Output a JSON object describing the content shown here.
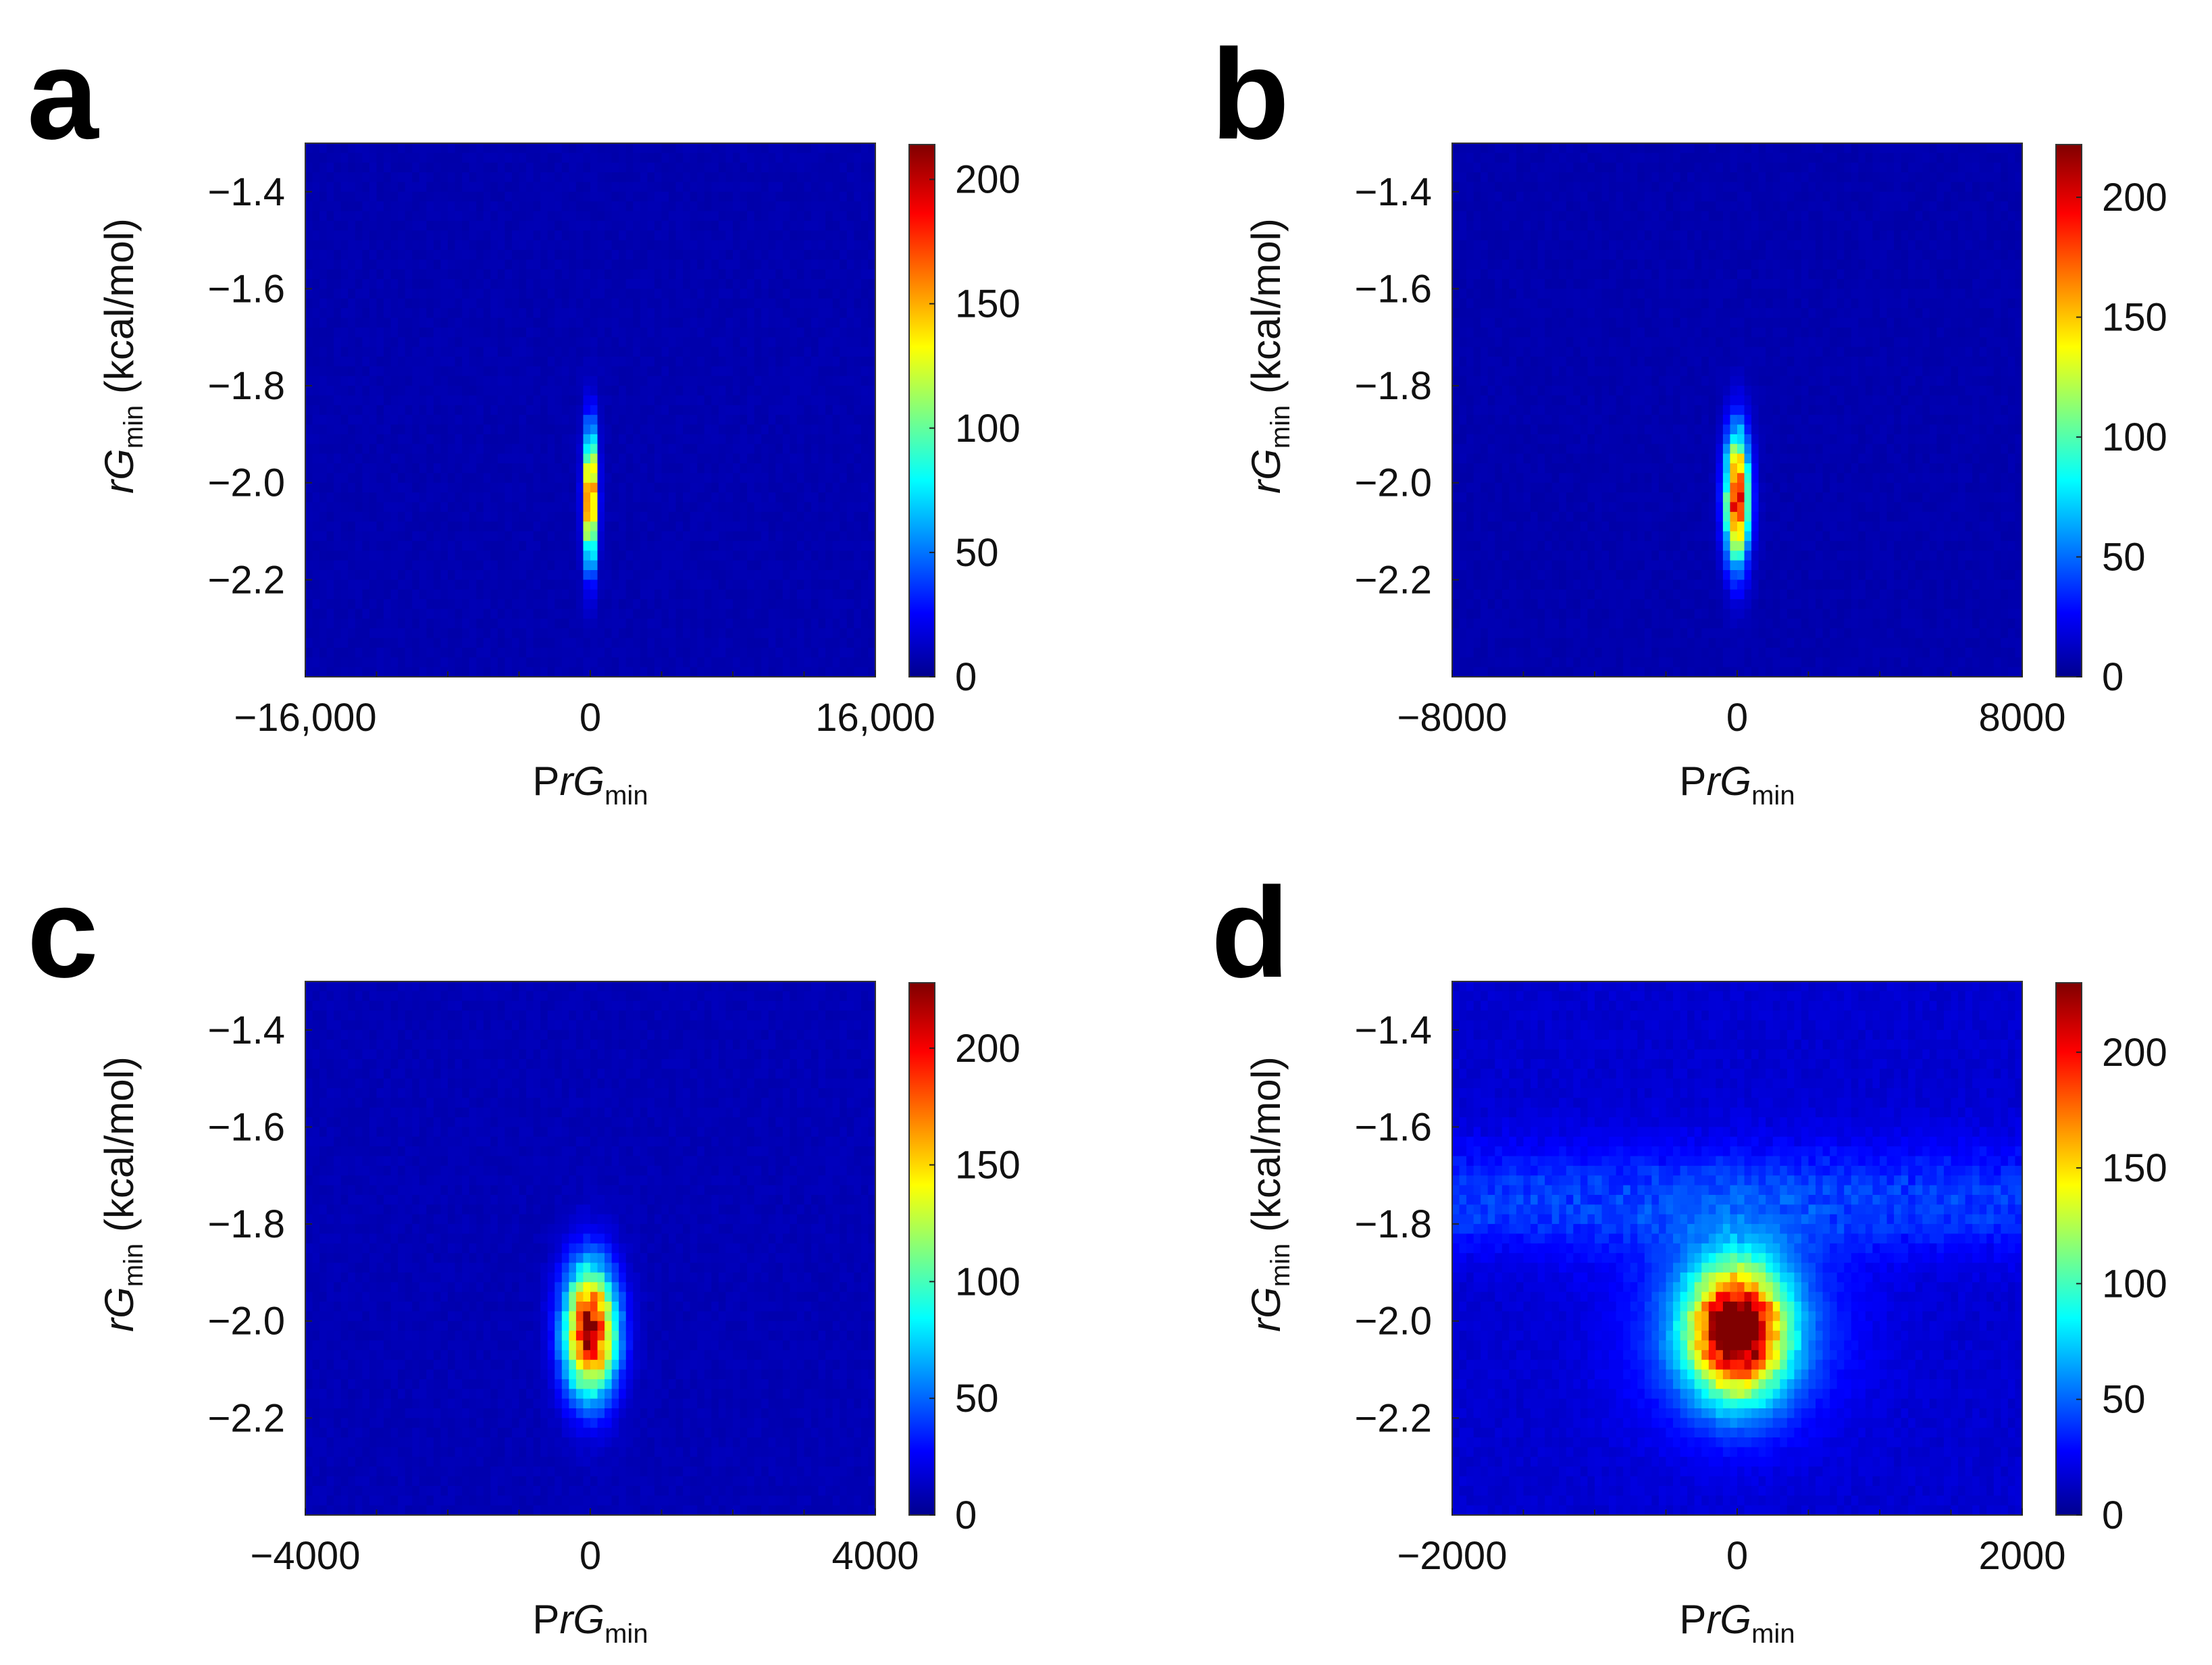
{
  "figure": {
    "panel_count": 4
  },
  "colormap": {
    "name": "jet",
    "stops": [
      "#00008f",
      "#0000ff",
      "#00ffff",
      "#ffff00",
      "#ff0000",
      "#800000"
    ]
  },
  "chart_data": [
    {
      "panel_label": "a",
      "type": "heatmap",
      "title": "",
      "xlabel": {
        "main": "P",
        "italic": "rG",
        "sub": "min"
      },
      "ylabel": {
        "italic": "rG",
        "sub": "min",
        "suffix": " (kcal/mol)"
      },
      "xlim": [
        -16000,
        16000
      ],
      "ylim": [
        -2.4,
        -1.3
      ],
      "x_ticks": [
        -16000,
        0,
        16000
      ],
      "x_ticklabels": [
        "−16,000",
        "0",
        "16,000"
      ],
      "y_ticks": [
        -1.4,
        -1.6,
        -1.8,
        -2.0,
        -2.2
      ],
      "y_ticklabels": [
        "−1.4",
        "−1.6",
        "−1.8",
        "−2.0",
        "−2.2"
      ],
      "grid_bins": [
        80,
        55
      ],
      "colorbar": {
        "vmin": 0,
        "vmax": 214,
        "ticks": [
          0,
          50,
          100,
          150,
          200
        ],
        "ticklabels": [
          "0",
          "50",
          "100",
          "150",
          "200"
        ]
      },
      "background_count": 10,
      "hotspot": {
        "x_center": 0,
        "y_center": -2.03,
        "x_sigma": 250,
        "y_sigma": 0.09,
        "peak": 210,
        "tail": 0
      }
    },
    {
      "panel_label": "b",
      "type": "heatmap",
      "title": "",
      "xlabel": {
        "main": "P",
        "italic": "rG",
        "sub": "min"
      },
      "ylabel": {
        "italic": "rG",
        "sub": "min",
        "suffix": " (kcal/mol)"
      },
      "xlim": [
        -8000,
        8000
      ],
      "ylim": [
        -2.4,
        -1.3
      ],
      "x_ticks": [
        -8000,
        0,
        8000
      ],
      "x_ticklabels": [
        "−8000",
        "0",
        "8000"
      ],
      "y_ticks": [
        -1.4,
        -1.6,
        -1.8,
        -2.0,
        -2.2
      ],
      "y_ticklabels": [
        "−1.4",
        "−1.6",
        "−1.8",
        "−2.0",
        "−2.2"
      ],
      "grid_bins": [
        80,
        55
      ],
      "colorbar": {
        "vmin": 0,
        "vmax": 222,
        "ticks": [
          0,
          50,
          100,
          150,
          200
        ],
        "ticklabels": [
          "0",
          "50",
          "100",
          "150",
          "200"
        ]
      },
      "background_count": 10,
      "hotspot": {
        "x_center": 0,
        "y_center": -2.03,
        "x_sigma": 230,
        "y_sigma": 0.09,
        "peak": 215,
        "tail": 0
      }
    },
    {
      "panel_label": "c",
      "type": "heatmap",
      "title": "",
      "xlabel": {
        "main": "P",
        "italic": "rG",
        "sub": "min"
      },
      "ylabel": {
        "italic": "rG",
        "sub": "min",
        "suffix": " (kcal/mol)"
      },
      "xlim": [
        -4000,
        4000
      ],
      "ylim": [
        -2.4,
        -1.3
      ],
      "x_ticks": [
        -4000,
        0,
        4000
      ],
      "x_ticklabels": [
        "−4000",
        "0",
        "4000"
      ],
      "y_ticks": [
        -1.4,
        -1.6,
        -1.8,
        -2.0,
        -2.2
      ],
      "y_ticklabels": [
        "−1.4",
        "−1.6",
        "−1.8",
        "−2.0",
        "−2.2"
      ],
      "grid_bins": [
        80,
        55
      ],
      "colorbar": {
        "vmin": 0,
        "vmax": 228,
        "ticks": [
          0,
          50,
          100,
          150,
          200
        ],
        "ticklabels": [
          "0",
          "50",
          "100",
          "150",
          "200"
        ]
      },
      "background_count": 12,
      "hotspot": {
        "x_center": 0,
        "y_center": -2.02,
        "x_sigma": 250,
        "y_sigma": 0.09,
        "peak": 225,
        "tail": 0
      }
    },
    {
      "panel_label": "d",
      "type": "heatmap",
      "title": "",
      "xlabel": {
        "main": "P",
        "italic": "rG",
        "sub": "min"
      },
      "ylabel": {
        "italic": "rG",
        "sub": "min",
        "suffix": " (kcal/mol)"
      },
      "xlim": [
        -2000,
        2000
      ],
      "ylim": [
        -2.4,
        -1.3
      ],
      "x_ticks": [
        -2000,
        0,
        2000
      ],
      "x_ticklabels": [
        "−2000",
        "0",
        "2000"
      ],
      "y_ticks": [
        -1.4,
        -1.6,
        -1.8,
        -2.0,
        -2.2
      ],
      "y_ticklabels": [
        "−1.4",
        "−1.6",
        "−1.8",
        "−2.0",
        "−2.2"
      ],
      "grid_bins": [
        80,
        55
      ],
      "colorbar": {
        "vmin": 0,
        "vmax": 230,
        "ticks": [
          0,
          50,
          100,
          150,
          200
        ],
        "ticklabels": [
          "0",
          "50",
          "100",
          "150",
          "200"
        ]
      },
      "background_count": 18,
      "hotspot": {
        "x_center": 0,
        "y_center": -2.02,
        "x_sigma": 230,
        "y_sigma": 0.09,
        "peak": 225,
        "tail": 28
      }
    }
  ]
}
